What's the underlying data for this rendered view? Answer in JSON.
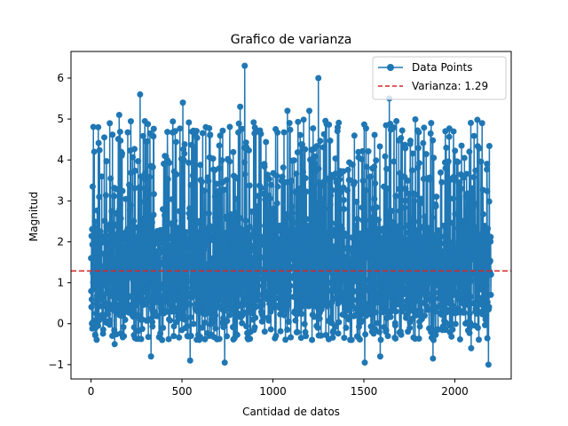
{
  "chart_data": {
    "type": "line",
    "title": "Grafico de varianza",
    "xlabel": "Cantidad de datos",
    "ylabel": "Magnitud",
    "xlim": [
      -110,
      2310
    ],
    "ylim": [
      -1.35,
      6.65
    ],
    "xticks": [
      0,
      500,
      1000,
      1500,
      2000
    ],
    "yticks": [
      -1,
      0,
      1,
      2,
      3,
      4,
      5,
      6
    ],
    "grid": false,
    "legend_position": "top-right",
    "n_points": 2200,
    "approximate": true,
    "series": [
      {
        "name": "Data Points",
        "color": "#1f77b4",
        "marker": "circle",
        "summary": "dense fluctuating series of ~2200 points, mostly between 0 and 2.5, frequent spikes up to ~5, min about -1.0, max 6.3 near x=845",
        "highlights": [
          {
            "x": 0,
            "y": 1.6
          },
          {
            "x": 40,
            "y": 4.8
          },
          {
            "x": 130,
            "y": -0.5
          },
          {
            "x": 155,
            "y": 5.1
          },
          {
            "x": 270,
            "y": 5.6
          },
          {
            "x": 330,
            "y": -0.8
          },
          {
            "x": 505,
            "y": 5.4
          },
          {
            "x": 545,
            "y": -0.9
          },
          {
            "x": 735,
            "y": -0.95
          },
          {
            "x": 820,
            "y": 5.3
          },
          {
            "x": 845,
            "y": 6.3
          },
          {
            "x": 1080,
            "y": 5.2
          },
          {
            "x": 1200,
            "y": 5.2
          },
          {
            "x": 1250,
            "y": 6.0
          },
          {
            "x": 1505,
            "y": -0.95
          },
          {
            "x": 1590,
            "y": -0.8
          },
          {
            "x": 1640,
            "y": 5.5
          },
          {
            "x": 1880,
            "y": -0.85
          },
          {
            "x": 2090,
            "y": -0.6
          },
          {
            "x": 2150,
            "y": 4.9
          },
          {
            "x": 2185,
            "y": -1.0
          },
          {
            "x": 2199,
            "y": 1.2
          }
        ]
      }
    ],
    "reference_line": {
      "name": "Varianza: 1.29",
      "y": 1.29,
      "color": "#d62728",
      "style": "dashed"
    }
  }
}
